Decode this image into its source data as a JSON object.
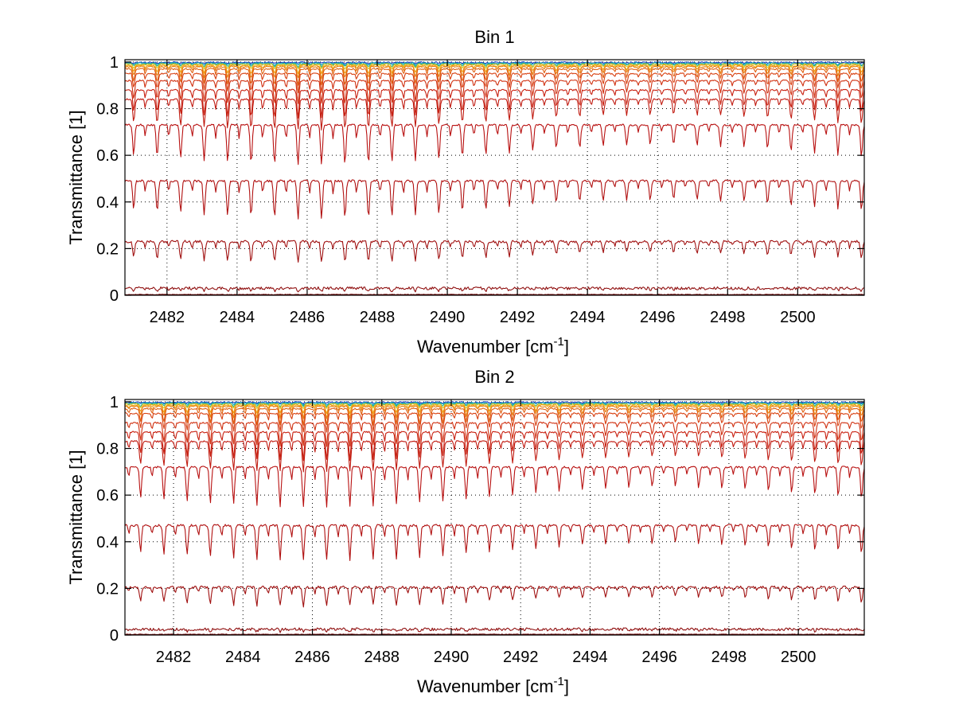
{
  "chart_data": [
    {
      "type": "line",
      "title": "Bin 1",
      "xlabel": "Wavenumber [cm",
      "xlabel_superscript": "-1",
      "xlabel_suffix": "]",
      "ylabel": "Transmittance [1]",
      "xlim": [
        2480.8,
        2501.9
      ],
      "ylim": [
        0,
        1.01
      ],
      "xticks": [
        2482,
        2484,
        2486,
        2488,
        2490,
        2492,
        2494,
        2496,
        2498,
        2500
      ],
      "xtick_labels": [
        "2482",
        "2484",
        "2486",
        "2488",
        "2490",
        "2492",
        "2494",
        "2496",
        "2498",
        "2500"
      ],
      "yticks": [
        0,
        0.2,
        0.4,
        0.6,
        0.8,
        1
      ],
      "ytick_labels": [
        "0",
        "0.2",
        "0.4",
        "0.6",
        "0.8",
        "1"
      ],
      "grid": true,
      "line_spacing_cm-1": 0.67,
      "series": [
        {
          "name": "blue",
          "baseline": 0.998,
          "depth": 0.004,
          "color": "#1f3fbf"
        },
        {
          "name": "cyan",
          "baseline": 0.995,
          "depth": 0.008,
          "color": "#10a0c0"
        },
        {
          "name": "teal",
          "baseline": 0.992,
          "depth": 0.012,
          "color": "#20b090"
        },
        {
          "name": "yellow",
          "baseline": 0.99,
          "depth": 0.02,
          "color": "#d8c020"
        },
        {
          "name": "orange-1",
          "baseline": 0.985,
          "depth": 0.035,
          "color": "#f0a010"
        },
        {
          "name": "orange-2",
          "baseline": 0.98,
          "depth": 0.05,
          "color": "#e88010"
        },
        {
          "name": "orange-3",
          "baseline": 0.97,
          "depth": 0.07,
          "color": "#e06010"
        },
        {
          "name": "red-1",
          "baseline": 0.95,
          "depth": 0.08,
          "color": "#d84010"
        },
        {
          "name": "red-2",
          "baseline": 0.92,
          "depth": 0.1,
          "color": "#d03010"
        },
        {
          "name": "red-3",
          "baseline": 0.88,
          "depth": 0.12,
          "color": "#c82010"
        },
        {
          "name": "red-4",
          "baseline": 0.84,
          "depth": 0.13,
          "color": "#c01a10"
        },
        {
          "name": "red-5",
          "baseline": 0.73,
          "depth": 0.17,
          "color": "#b81010"
        },
        {
          "name": "red-6",
          "baseline": 0.49,
          "depth": 0.16,
          "color": "#b01010"
        },
        {
          "name": "red-7",
          "baseline": 0.23,
          "depth": 0.09,
          "color": "#a01010"
        },
        {
          "name": "red-8",
          "baseline": 0.03,
          "depth": 0.012,
          "color": "#901010"
        },
        {
          "name": "dark-red",
          "baseline": 0.003,
          "depth": 0.0,
          "color": "#700000"
        }
      ]
    },
    {
      "type": "line",
      "title": "Bin 2",
      "xlabel": "Wavenumber [cm",
      "xlabel_superscript": "-1",
      "xlabel_suffix": "]",
      "ylabel": "Transmittance [1]",
      "xlim": [
        2480.6,
        2501.9
      ],
      "ylim": [
        0,
        1.01
      ],
      "xticks": [
        2482,
        2484,
        2486,
        2488,
        2490,
        2492,
        2494,
        2496,
        2498,
        2500
      ],
      "xtick_labels": [
        "2482",
        "2484",
        "2486",
        "2488",
        "2490",
        "2492",
        "2494",
        "2496",
        "2498",
        "2500"
      ],
      "yticks": [
        0,
        0.2,
        0.4,
        0.6,
        0.8,
        1
      ],
      "ytick_labels": [
        "0",
        "0.2",
        "0.4",
        "0.6",
        "0.8",
        "1"
      ],
      "grid": true,
      "line_spacing_cm-1": 0.67,
      "series": [
        {
          "name": "blue",
          "baseline": 0.998,
          "depth": 0.004,
          "color": "#1f3fbf"
        },
        {
          "name": "cyan",
          "baseline": 0.995,
          "depth": 0.008,
          "color": "#10a0c0"
        },
        {
          "name": "teal",
          "baseline": 0.992,
          "depth": 0.012,
          "color": "#20b090"
        },
        {
          "name": "yellow",
          "baseline": 0.99,
          "depth": 0.02,
          "color": "#d8c020"
        },
        {
          "name": "orange-1",
          "baseline": 0.985,
          "depth": 0.035,
          "color": "#f0a010"
        },
        {
          "name": "orange-2",
          "baseline": 0.98,
          "depth": 0.05,
          "color": "#e88010"
        },
        {
          "name": "orange-3",
          "baseline": 0.97,
          "depth": 0.07,
          "color": "#e06010"
        },
        {
          "name": "red-1",
          "baseline": 0.95,
          "depth": 0.08,
          "color": "#d84010"
        },
        {
          "name": "red-2",
          "baseline": 0.91,
          "depth": 0.1,
          "color": "#d03010"
        },
        {
          "name": "red-3",
          "baseline": 0.87,
          "depth": 0.12,
          "color": "#c82010"
        },
        {
          "name": "red-4",
          "baseline": 0.83,
          "depth": 0.13,
          "color": "#c01a10"
        },
        {
          "name": "red-5",
          "baseline": 0.72,
          "depth": 0.17,
          "color": "#b81010"
        },
        {
          "name": "red-6",
          "baseline": 0.47,
          "depth": 0.15,
          "color": "#b01010"
        },
        {
          "name": "red-7",
          "baseline": 0.205,
          "depth": 0.08,
          "color": "#a01010"
        },
        {
          "name": "red-8",
          "baseline": 0.025,
          "depth": 0.01,
          "color": "#901010"
        },
        {
          "name": "dark-red",
          "baseline": 0.003,
          "depth": 0.0,
          "color": "#700000"
        }
      ]
    }
  ]
}
